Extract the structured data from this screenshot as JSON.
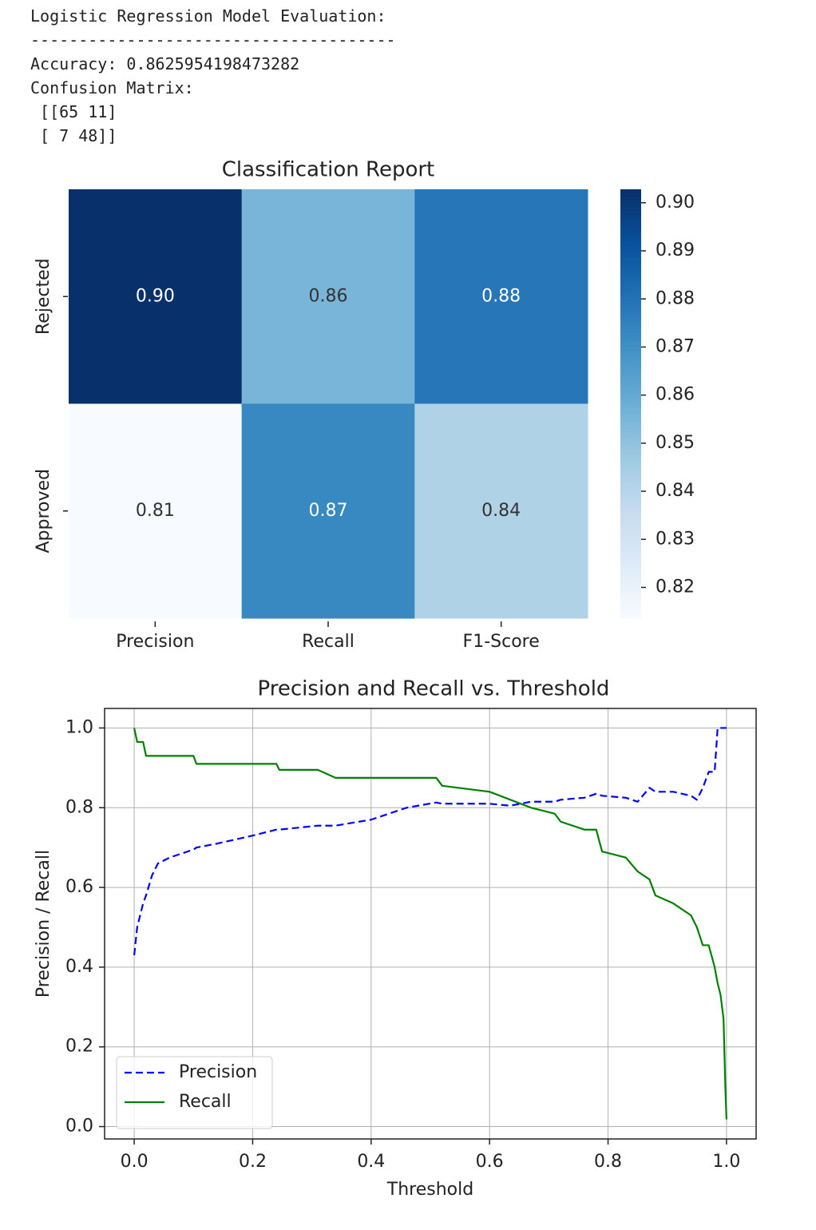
{
  "output": {
    "lines": [
      "Logistic Regression Model Evaluation:",
      "--------------------------------------",
      "Accuracy: 0.8625954198473282",
      "Confusion Matrix:",
      " [[65 11]",
      " [ 7 48]]"
    ]
  },
  "chart_data": [
    {
      "type": "heatmap",
      "title": "Classification Report",
      "categories": [
        "Precision",
        "Recall",
        "F1-Score"
      ],
      "y_categories": [
        "Rejected",
        "Approved"
      ],
      "values": [
        [
          0.9028,
          0.8553,
          0.8784
        ],
        [
          0.8136,
          0.8727,
          0.8421
        ]
      ],
      "value_labels": [
        [
          "0.90",
          "0.86",
          "0.88"
        ],
        [
          "0.81",
          "0.87",
          "0.84"
        ]
      ],
      "colormap": [
        "#f7fbff",
        "#deebf7",
        "#c6dbef",
        "#9ecae1",
        "#6baed6",
        "#4292c6",
        "#2171b5",
        "#08519c",
        "#08306b"
      ],
      "clim": [
        0.8136,
        0.9028
      ],
      "cticks": [
        0.82,
        0.83,
        0.84,
        0.85,
        0.86,
        0.87,
        0.88,
        0.89,
        {
          "value": 0.9,
          "label": "0.90"
        }
      ]
    },
    {
      "type": "line",
      "title": "Precision and Recall vs. Threshold",
      "xlabel": "Threshold",
      "ylabel": "Precision / Recall",
      "x": [
        0,
        0.005,
        0.015,
        0.02,
        0.03,
        0.04,
        0.06,
        0.1,
        0.105,
        0.14,
        0.2,
        0.24,
        0.245,
        0.31,
        0.34,
        0.4,
        0.46,
        0.51,
        0.52,
        0.6,
        0.635,
        0.67,
        0.71,
        0.72,
        0.76,
        0.78,
        0.79,
        0.83,
        0.85,
        0.87,
        0.88,
        0.91,
        0.94,
        0.95,
        0.96,
        0.97,
        0.98,
        0.985,
        0.99,
        0.995,
        0.998,
        1.0
      ],
      "series": [
        {
          "name": "Precision",
          "color": "#0000ff",
          "dashed": true,
          "values": [
            0.43,
            0.5,
            0.56,
            0.58,
            0.63,
            0.66,
            0.675,
            0.695,
            0.7,
            0.71,
            0.73,
            0.745,
            0.745,
            0.755,
            0.755,
            0.77,
            0.8,
            0.813,
            0.81,
            0.81,
            0.805,
            0.815,
            0.815,
            0.82,
            0.825,
            0.835,
            0.83,
            0.825,
            0.815,
            0.85,
            0.84,
            0.84,
            0.83,
            0.82,
            0.85,
            0.89,
            0.89,
            1.0,
            1.0,
            1.0,
            1.0,
            1.0
          ]
        },
        {
          "name": "Recall",
          "color": "#008000",
          "dashed": false,
          "values": [
            1.0,
            0.965,
            0.965,
            0.93,
            0.93,
            0.93,
            0.93,
            0.93,
            0.91,
            0.91,
            0.91,
            0.91,
            0.895,
            0.895,
            0.875,
            0.875,
            0.875,
            0.875,
            0.855,
            0.84,
            0.82,
            0.8,
            0.785,
            0.765,
            0.745,
            0.745,
            0.69,
            0.675,
            0.64,
            0.62,
            0.58,
            0.56,
            0.53,
            0.5,
            0.455,
            0.455,
            0.4,
            0.36,
            0.33,
            0.27,
            0.1,
            0.018
          ]
        }
      ],
      "xlim": [
        -0.05,
        1.05
      ],
      "ylim": [
        -0.031,
        1.049
      ],
      "xticks": [
        {
          "value": 0,
          "label": "0.0"
        },
        0.2,
        0.4,
        0.6,
        0.8,
        {
          "value": 1,
          "label": "1.0"
        }
      ],
      "yticks": [
        {
          "value": 0,
          "label": "0.0"
        },
        0.2,
        0.4,
        0.6,
        0.8,
        {
          "value": 1,
          "label": "1.0"
        }
      ],
      "grid": true,
      "legend": "lower left"
    }
  ]
}
